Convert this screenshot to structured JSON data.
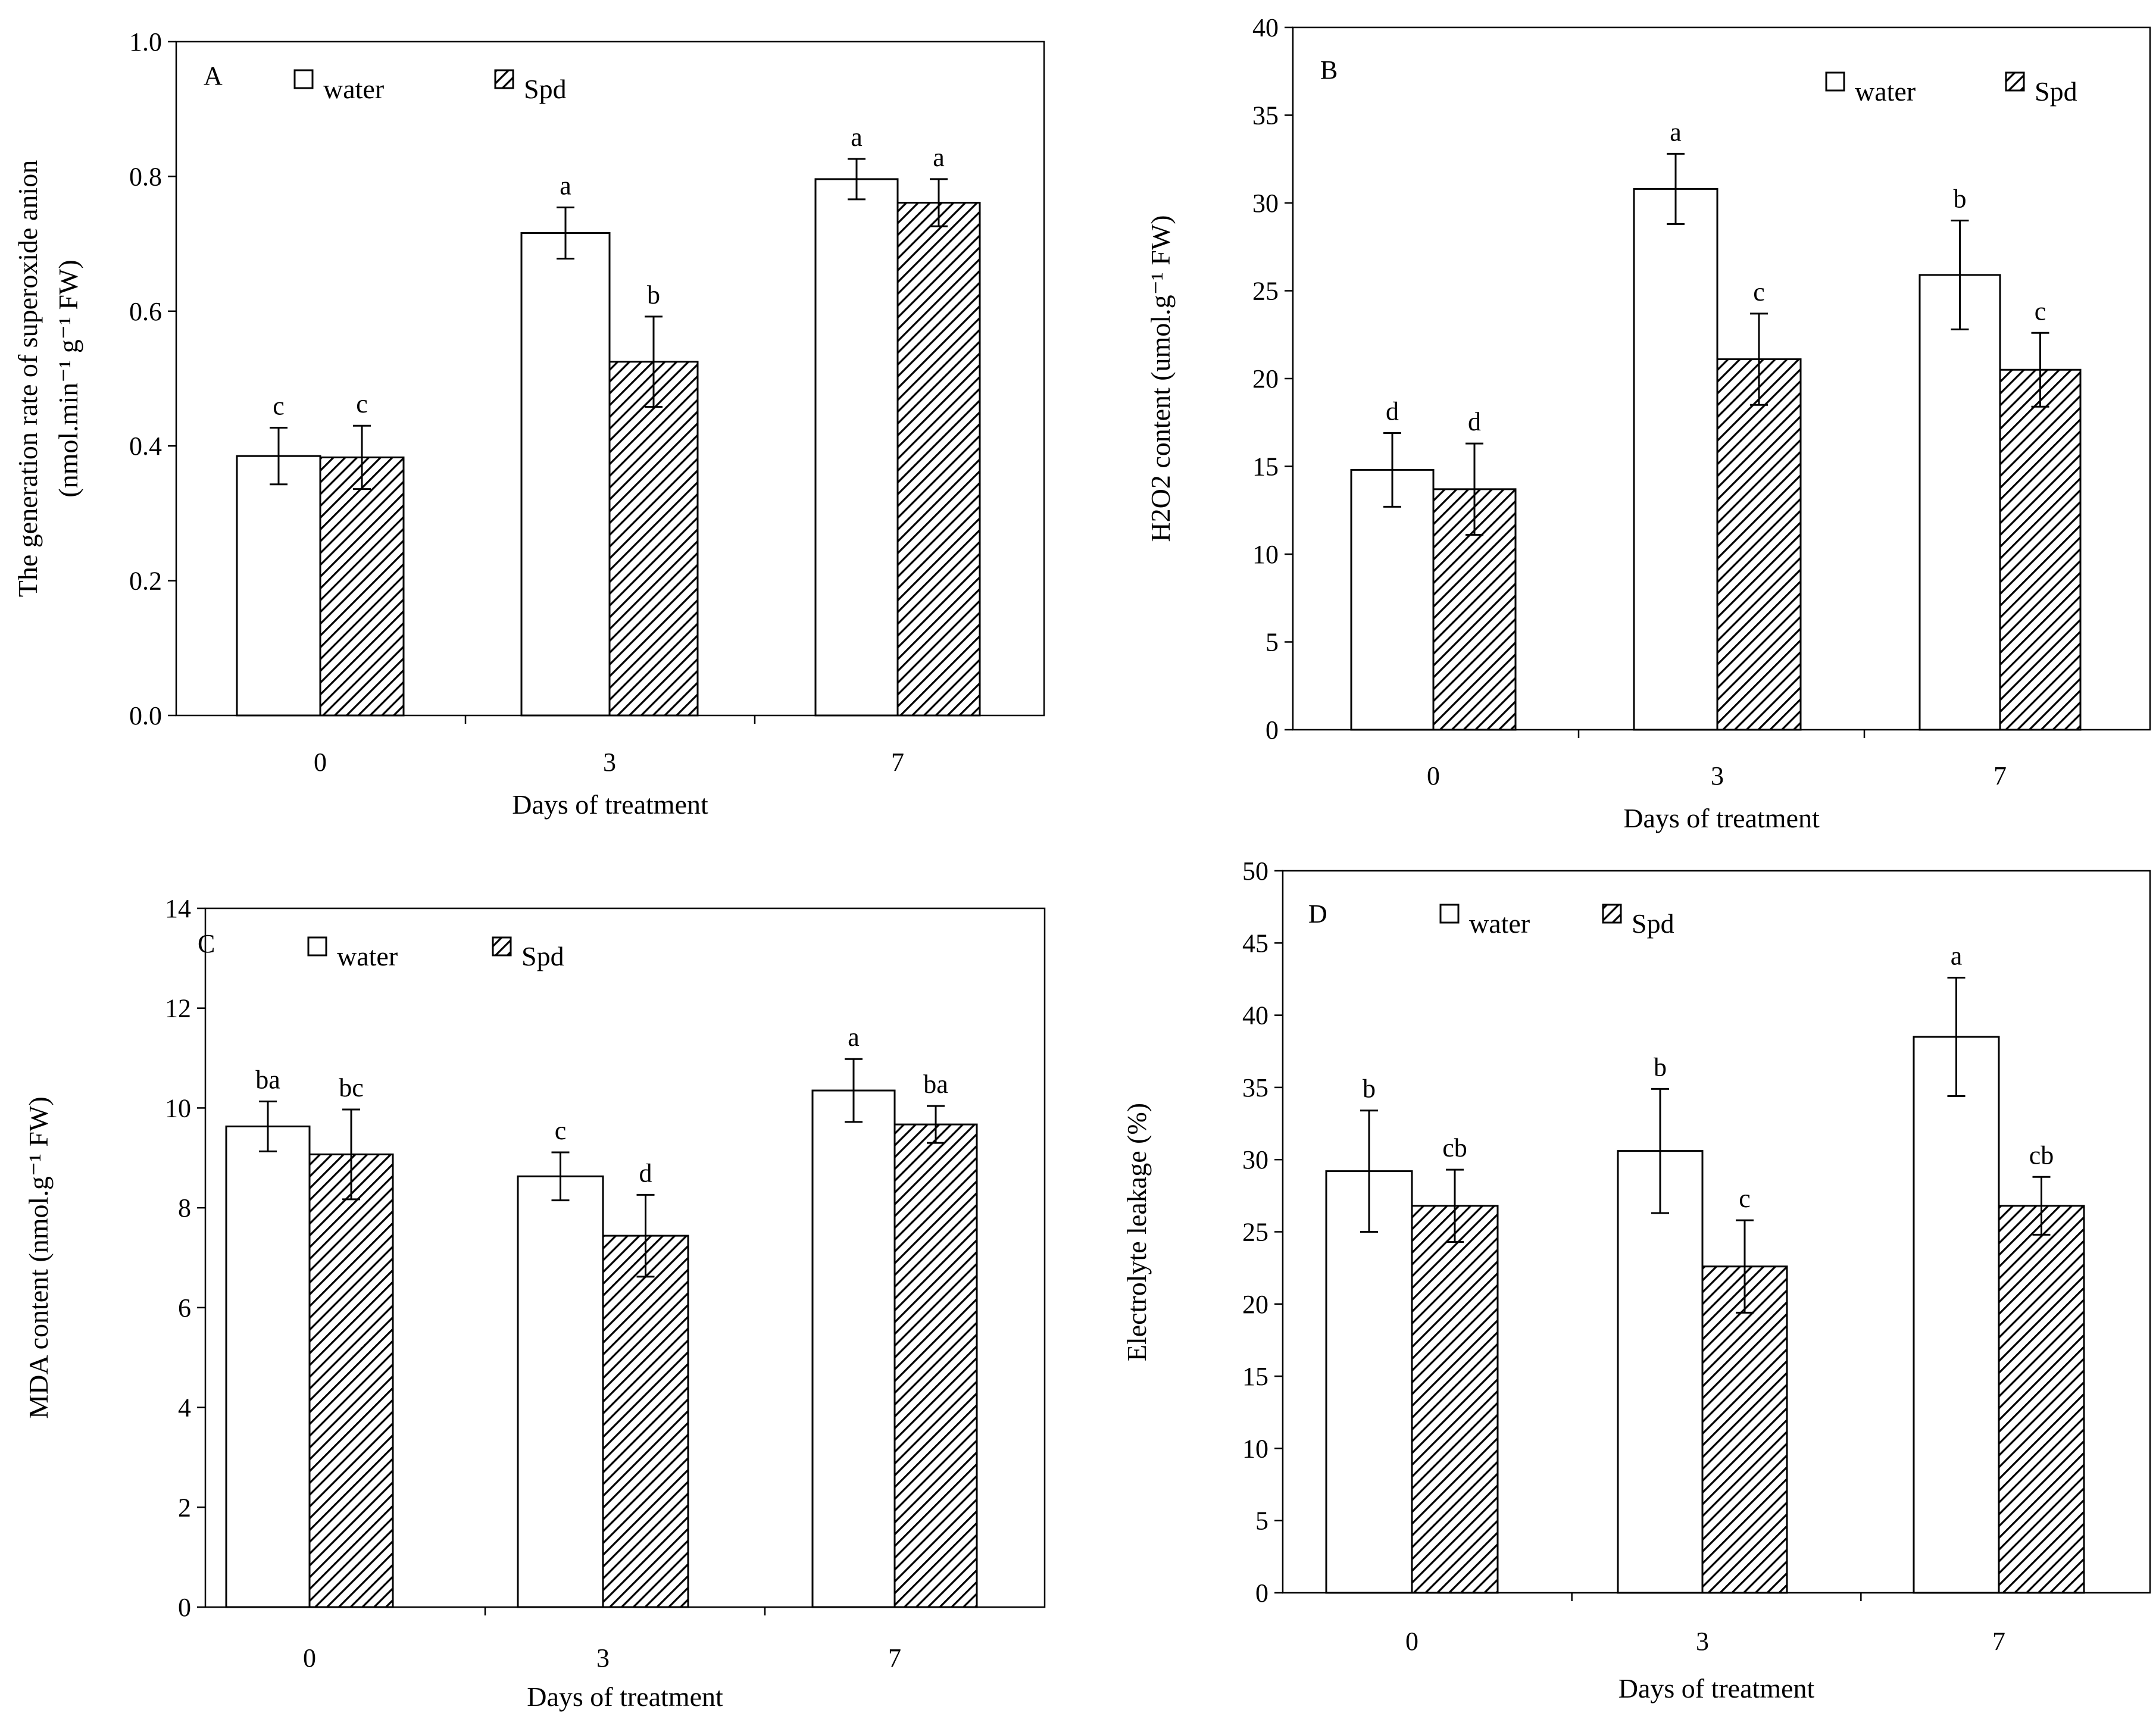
{
  "chart_data": [
    {
      "type": "bar",
      "panel": "A",
      "categories": [
        "0",
        "3",
        "7"
      ],
      "xlabel": "Days of treatment",
      "ylabel_lines": [
        "The generation rate of superoxide anion",
        "(nmol.min⁻¹ g⁻¹ FW)"
      ],
      "yticks": [
        "0.0",
        "0.2",
        "0.4",
        "0.6",
        "0.8",
        "1.0"
      ],
      "ylim": [
        0,
        1.0
      ],
      "legend": [
        "water",
        "Spd"
      ],
      "legend_position": "top-left",
      "series": [
        {
          "name": "water",
          "values": [
            0.385,
            0.716,
            0.796
          ],
          "errors": [
            0.042,
            0.038,
            0.03
          ],
          "labels": [
            "c",
            "a",
            "a"
          ]
        },
        {
          "name": "Spd",
          "values": [
            0.383,
            0.525,
            0.761
          ],
          "errors": [
            0.047,
            0.067,
            0.035
          ],
          "labels": [
            "c",
            "b",
            "a"
          ]
        }
      ]
    },
    {
      "type": "bar",
      "panel": "B",
      "categories": [
        "0",
        "3",
        "7"
      ],
      "xlabel": "Days of treatment",
      "ylabel_lines": [
        "H2O2 content (umol.g⁻¹ FW)"
      ],
      "yticks": [
        "0",
        "5",
        "10",
        "15",
        "20",
        "25",
        "30",
        "35",
        "40"
      ],
      "ylim": [
        0,
        40
      ],
      "legend": [
        "water",
        "Spd"
      ],
      "legend_position": "top-right",
      "series": [
        {
          "name": "water",
          "values": [
            14.8,
            30.8,
            25.9
          ],
          "errors": [
            2.1,
            2.0,
            3.1
          ],
          "labels": [
            "d",
            "a",
            "b"
          ]
        },
        {
          "name": "Spd",
          "values": [
            13.7,
            21.1,
            20.5
          ],
          "errors": [
            2.6,
            2.6,
            2.1
          ],
          "labels": [
            "d",
            "c",
            "c"
          ]
        }
      ]
    },
    {
      "type": "bar",
      "panel": "C",
      "categories": [
        "0",
        "3",
        "7"
      ],
      "xlabel": "Days of treatment",
      "ylabel_lines": [
        "MDA content (nmol.g⁻¹ FW)"
      ],
      "yticks": [
        "0",
        "2",
        "4",
        "6",
        "8",
        "10",
        "12",
        "14"
      ],
      "ylim": [
        0,
        14
      ],
      "legend": [
        "water",
        "Spd"
      ],
      "legend_position": "top-left",
      "series": [
        {
          "name": "water",
          "values": [
            9.63,
            8.63,
            10.35
          ],
          "errors": [
            0.5,
            0.48,
            0.63
          ],
          "labels": [
            "ba",
            "c",
            "a"
          ]
        },
        {
          "name": "Spd",
          "values": [
            9.07,
            7.44,
            9.67
          ],
          "errors": [
            0.9,
            0.82,
            0.37
          ],
          "labels": [
            "bc",
            "d",
            "ba"
          ]
        }
      ]
    },
    {
      "type": "bar",
      "panel": "D",
      "categories": [
        "0",
        "3",
        "7"
      ],
      "xlabel": "Days of treatment",
      "ylabel_lines": [
        "Electrolyte leakage (%)"
      ],
      "yticks": [
        "0",
        "5",
        "10",
        "15",
        "20",
        "25",
        "30",
        "35",
        "40",
        "45",
        "50"
      ],
      "ylim": [
        0,
        50
      ],
      "legend": [
        "water",
        "Spd"
      ],
      "legend_position": "top-left",
      "series": [
        {
          "name": "water",
          "values": [
            29.2,
            30.6,
            38.5
          ],
          "errors": [
            4.2,
            4.3,
            4.1
          ],
          "labels": [
            "b",
            "b",
            "a"
          ]
        },
        {
          "name": "Spd",
          "values": [
            26.8,
            22.6,
            26.8
          ],
          "errors": [
            2.5,
            3.2,
            2.0
          ],
          "labels": [
            "cb",
            "c",
            "cb"
          ]
        }
      ]
    }
  ]
}
